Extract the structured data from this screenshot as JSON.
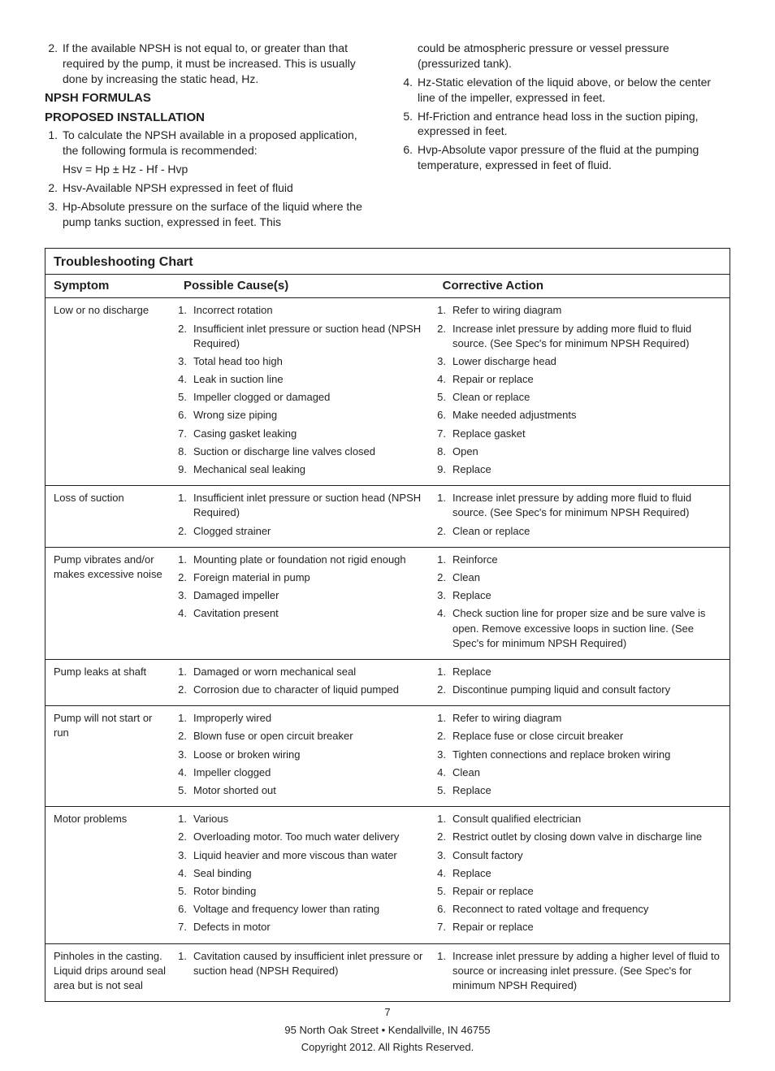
{
  "left_col": {
    "top_item": {
      "n": "2.",
      "t": "If the available NPSH is not equal to, or greater than that required by the pump, it must be increased.  This is usually done by increasing the static head, Hz."
    },
    "h1": "NPSH FORMULAS",
    "h2": "PROPOSED INSTALLATION",
    "items": [
      {
        "n": "1.",
        "t": "To calculate the NPSH available in a proposed application, the following formula is recommended:"
      }
    ],
    "formula": "Hsv = Hp ± Hz - Hf - Hvp",
    "items2": [
      {
        "n": "2.",
        "t": "Hsv-Available NPSH expressed in feet of fluid"
      },
      {
        "n": "3.",
        "t": "Hp-Absolute pressure on the surface of the liquid where the pump tanks suction, expressed in feet.  This"
      }
    ]
  },
  "right_col": {
    "cont": "could be atmospheric pressure or vessel pressure (pressurized tank).",
    "items": [
      {
        "n": "4.",
        "t": "Hz-Static elevation of the liquid above, or below the center line of the impeller, expressed in feet."
      },
      {
        "n": "5.",
        "t": "Hf-Friction and entrance head loss in the suction piping, expressed in feet."
      },
      {
        "n": "6.",
        "t": "Hvp-Absolute vapor pressure of the fluid at the pumping temperature, expressed in feet of fluid."
      }
    ]
  },
  "chart": {
    "title": "Troubleshooting Chart",
    "head": {
      "sym": "Symptom",
      "cause": "Possible Cause(s)",
      "act": "Corrective Action"
    },
    "rows": [
      {
        "sym": "Low or no discharge",
        "causes": [
          {
            "n": "1.",
            "t": "Incorrect rotation"
          },
          {
            "n": "2.",
            "t": "Insufficient inlet pressure or suction head (NPSH Required)"
          },
          {
            "n": "3.",
            "t": "Total head too high"
          },
          {
            "n": "4.",
            "t": "Leak in suction line"
          },
          {
            "n": "5.",
            "t": "Impeller clogged or damaged"
          },
          {
            "n": "6.",
            "t": "Wrong size piping"
          },
          {
            "n": "7.",
            "t": "Casing gasket leaking"
          },
          {
            "n": "8.",
            "t": "Suction or discharge line valves closed"
          },
          {
            "n": "9.",
            "t": "Mechanical seal leaking"
          }
        ],
        "actions": [
          {
            "n": "1.",
            "t": "Refer to wiring diagram"
          },
          {
            "n": "2.",
            "t": "Increase inlet pressure by adding more fluid to fluid source.  (See Spec's for minimum NPSH Required)"
          },
          {
            "n": "3.",
            "t": "Lower discharge head"
          },
          {
            "n": "4.",
            "t": "Repair or replace"
          },
          {
            "n": "5.",
            "t": "Clean or replace"
          },
          {
            "n": "6.",
            "t": "Make needed adjustments"
          },
          {
            "n": "7.",
            "t": "Replace gasket"
          },
          {
            "n": "8.",
            "t": "Open"
          },
          {
            "n": "9.",
            "t": "Replace"
          }
        ]
      },
      {
        "sym": "Loss of suction",
        "causes": [
          {
            "n": "1.",
            "t": "Insufficient inlet pressure or suction head (NPSH Required)"
          },
          {
            "n": "2.",
            "t": "Clogged strainer"
          }
        ],
        "actions": [
          {
            "n": "1.",
            "t": "Increase inlet pressure by adding more fluid to fluid source.  (See Spec's for minimum NPSH Required)"
          },
          {
            "n": "2.",
            "t": "Clean or replace"
          }
        ]
      },
      {
        "sym": "Pump vibrates and/or makes excessive noise",
        "causes": [
          {
            "n": "1.",
            "t": "Mounting plate or foundation not rigid enough"
          },
          {
            "n": "2.",
            "t": "Foreign material in pump"
          },
          {
            "n": "3.",
            "t": "Damaged impeller"
          },
          {
            "n": "4.",
            "t": "Cavitation present"
          }
        ],
        "actions": [
          {
            "n": "1.",
            "t": "Reinforce"
          },
          {
            "n": "2.",
            "t": "Clean"
          },
          {
            "n": "3.",
            "t": "Replace"
          },
          {
            "n": "4.",
            "t": "Check suction line for proper size and be sure valve is open. Remove excessive loops in suction line.  (See Spec's for minimum NPSH Required)"
          }
        ]
      },
      {
        "sym": "Pump leaks at shaft",
        "causes": [
          {
            "n": "1.",
            "t": "Damaged or worn mechanical seal"
          },
          {
            "n": "2.",
            "t": "Corrosion due to character of liquid pumped"
          }
        ],
        "actions": [
          {
            "n": "1.",
            "t": "Replace"
          },
          {
            "n": "2.",
            "t": "Discontinue pumping liquid and consult  factory"
          }
        ]
      },
      {
        "sym": "Pump will not start or run",
        "causes": [
          {
            "n": "1.",
            "t": "Improperly wired"
          },
          {
            "n": "2.",
            "t": "Blown fuse or open circuit breaker"
          },
          {
            "n": "3.",
            "t": "Loose or broken wiring"
          },
          {
            "n": "4.",
            "t": "Impeller clogged"
          },
          {
            "n": "5.",
            "t": "Motor shorted out"
          }
        ],
        "actions": [
          {
            "n": "1.",
            "t": "Refer to wiring diagram"
          },
          {
            "n": "2.",
            "t": "Replace fuse or close circuit breaker"
          },
          {
            "n": "3.",
            "t": "Tighten connections and replace broken wiring"
          },
          {
            "n": "4.",
            "t": "Clean"
          },
          {
            "n": "5.",
            "t": "Replace"
          }
        ]
      },
      {
        "sym": "Motor problems",
        "causes": [
          {
            "n": "1.",
            "t": "Various"
          },
          {
            "n": "2.",
            "t": "Overloading motor. Too much water delivery"
          },
          {
            "n": "3.",
            "t": "Liquid heavier and more viscous than water"
          },
          {
            "n": "4.",
            "t": "Seal binding"
          },
          {
            "n": "5.",
            "t": "Rotor binding"
          },
          {
            "n": "6.",
            "t": "Voltage and frequency lower than rating"
          },
          {
            "n": "7.",
            "t": "Defects in motor"
          }
        ],
        "actions": [
          {
            "n": "1.",
            "t": "Consult qualified electrician"
          },
          {
            "n": "2.",
            "t": "Restrict outlet by closing down valve in discharge line"
          },
          {
            "n": "3.",
            "t": "Consult factory"
          },
          {
            "n": "4.",
            "t": "Replace"
          },
          {
            "n": "5.",
            "t": "Repair or replace"
          },
          {
            "n": "6.",
            "t": "Reconnect to rated voltage and frequency"
          },
          {
            "n": "7.",
            "t": "Repair or replace"
          }
        ]
      },
      {
        "sym": "Pinholes in the casting. Liquid drips around seal area but is not seal",
        "causes": [
          {
            "n": "1.",
            "t": "Cavitation caused by insufficient inlet pressure or suction head (NPSH Required)"
          }
        ],
        "actions": [
          {
            "n": "1.",
            "t": "Increase inlet pressure by adding a higher level of fluid to source or increasing inlet pressure. (See Spec's for minimum NPSH Required)"
          }
        ]
      }
    ]
  },
  "footer": {
    "page": "7",
    "addr": "95 North Oak Street • Kendallville, IN 46755",
    "copy": "Copyright 2012. All Rights Reserved."
  }
}
